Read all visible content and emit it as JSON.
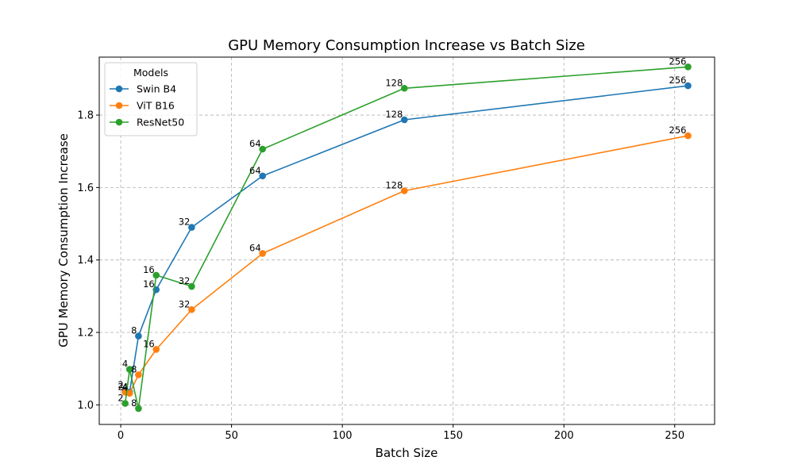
{
  "chart_data": {
    "type": "line",
    "title": "GPU Memory Consumption Increase vs Batch Size",
    "xlabel": "Batch Size",
    "ylabel": "GPU Memory Consumption Increase",
    "xlim": [
      -9.7,
      268
    ],
    "ylim": [
      0.946,
      1.96
    ],
    "xticks": [
      0,
      50,
      100,
      150,
      200,
      250
    ],
    "yticks": [
      1.0,
      1.2,
      1.4,
      1.6,
      1.8
    ],
    "grid": true,
    "legend": {
      "title": "Models",
      "placement": "top-left"
    },
    "series": [
      {
        "name": "Swin B4",
        "color": "#1f77b4",
        "x": [
          2,
          4,
          8,
          16,
          32,
          64,
          128,
          256
        ],
        "y": [
          1.04,
          1.035,
          1.19,
          1.318,
          1.49,
          1.632,
          1.787,
          1.881
        ],
        "labels": [
          "2",
          "4",
          "8",
          "16",
          "32",
          "64",
          "128",
          "256"
        ]
      },
      {
        "name": "ViT B16",
        "color": "#ff7f0e",
        "x": [
          2,
          4,
          8,
          16,
          32,
          64,
          128,
          256
        ],
        "y": [
          1.035,
          1.032,
          1.083,
          1.153,
          1.263,
          1.418,
          1.591,
          1.743
        ],
        "labels": [
          "2",
          "4",
          "8",
          "16",
          "32",
          "64",
          "128",
          "256"
        ]
      },
      {
        "name": "ResNet50",
        "color": "#2ca02c",
        "x": [
          2,
          4,
          8,
          16,
          32,
          64,
          128,
          256
        ],
        "y": [
          1.004,
          1.098,
          0.99,
          1.358,
          1.327,
          1.706,
          1.874,
          1.933
        ],
        "labels": [
          "2",
          "4",
          "8",
          "16",
          "32",
          "64",
          "128",
          "256"
        ]
      }
    ]
  }
}
